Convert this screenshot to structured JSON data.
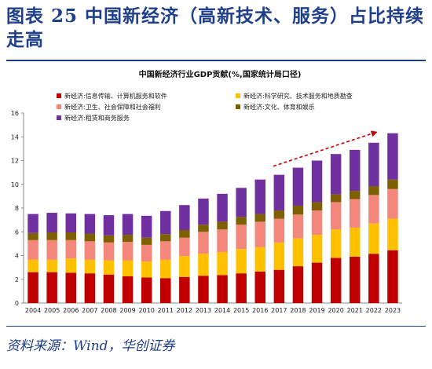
{
  "figure": {
    "title": "图表 25   中国新经济（高新技术、服务）占比持续走高",
    "source": "资料来源：Wind，华创证券"
  },
  "chart_data": {
    "type": "bar",
    "stacked": true,
    "title": "中国新经济行业GDP贡献(%,国家统计局口径)",
    "xlabel": "",
    "ylabel": "",
    "ylim": [
      0,
      16
    ],
    "yticks": [
      0,
      2,
      4,
      6,
      8,
      10,
      12,
      14,
      16
    ],
    "grid": false,
    "legend_position": "top",
    "categories": [
      "2004",
      "2005",
      "2006",
      "2007",
      "2008",
      "2009",
      "2010",
      "2011",
      "2012",
      "2013",
      "2014",
      "2015",
      "2016",
      "2017",
      "2018",
      "2019",
      "2020",
      "2021",
      "2022",
      "2023"
    ],
    "series": [
      {
        "name": "新经济:信息传输、计算机服务和软件",
        "color": "#c00000",
        "values": [
          2.6,
          2.6,
          2.55,
          2.5,
          2.4,
          2.25,
          2.15,
          2.1,
          2.2,
          2.3,
          2.35,
          2.5,
          2.65,
          2.8,
          3.1,
          3.4,
          3.8,
          3.9,
          4.15,
          4.45
        ]
      },
      {
        "name": "新经济:科学研究、技术服务和地质勘查",
        "color": "#ffc000",
        "values": [
          1.05,
          1.05,
          1.2,
          1.15,
          1.2,
          1.35,
          1.35,
          1.55,
          1.75,
          1.85,
          1.95,
          2.05,
          2.05,
          2.3,
          2.35,
          2.35,
          2.4,
          2.45,
          2.55,
          2.65
        ]
      },
      {
        "name": "新经济:卫生、社会保障和社会福利",
        "color": "#f4877c",
        "values": [
          1.65,
          1.65,
          1.55,
          1.55,
          1.5,
          1.55,
          1.4,
          1.55,
          1.55,
          1.85,
          1.9,
          2.05,
          2.15,
          2.0,
          2.0,
          2.05,
          2.3,
          2.4,
          2.4,
          2.5
        ]
      },
      {
        "name": "新经济:文化、体育和娱乐",
        "color": "#7f6000",
        "values": [
          0.6,
          0.65,
          0.65,
          0.65,
          0.6,
          0.6,
          0.6,
          0.6,
          0.65,
          0.6,
          0.65,
          0.65,
          0.65,
          0.7,
          0.75,
          0.7,
          0.65,
          0.7,
          0.75,
          0.8
        ]
      },
      {
        "name": "新经济:租赁和商务服务",
        "color": "#7030a0",
        "values": [
          1.6,
          1.65,
          1.6,
          1.65,
          1.7,
          1.75,
          1.85,
          1.95,
          2.1,
          2.2,
          2.35,
          2.45,
          2.9,
          3.0,
          3.2,
          3.5,
          3.4,
          3.45,
          3.65,
          3.9
        ]
      }
    ],
    "annotation": {
      "type": "trend-arrow",
      "color": "#c00000",
      "from_category": "2017",
      "to_category": "2022"
    }
  }
}
